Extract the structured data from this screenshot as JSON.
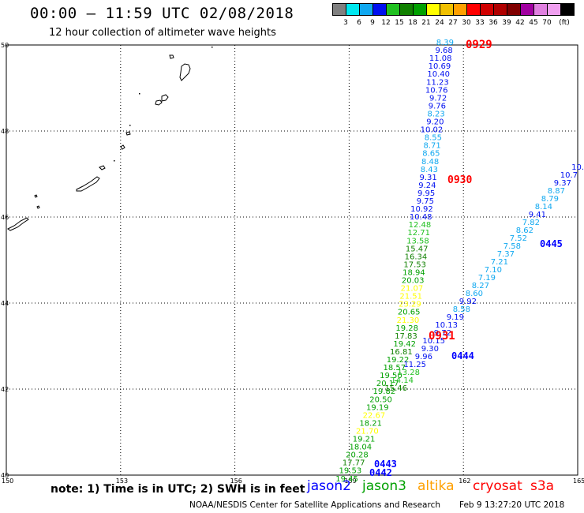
{
  "header": {
    "title": "00:00 – 11:59 UTC 02/08/2018",
    "subtitle": "12 hour collection of altimeter wave heights"
  },
  "legend": {
    "unit": "(ft)",
    "colors": [
      "#808080",
      "#00e8f0",
      "#10a8f0",
      "#0010f0",
      "#20c020",
      "#108000",
      "#00a000",
      "#ffff00",
      "#f0c000",
      "#ffa000",
      "#ff0000",
      "#d00000",
      "#b00000",
      "#800000",
      "#a000a0",
      "#e080e0",
      "#f0a0f0",
      "#000000"
    ],
    "ticks": [
      "3",
      "6",
      "9",
      "12",
      "15",
      "18",
      "21",
      "24",
      "27",
      "30",
      "33",
      "36",
      "39",
      "42",
      "45",
      "70"
    ]
  },
  "axes": {
    "lat_labels": [
      "50",
      "48",
      "46",
      "44",
      "42",
      "40"
    ],
    "lon_labels": [
      "150",
      "153",
      "156",
      "159",
      "162",
      "165"
    ]
  },
  "tracks": [
    {
      "id": "track-a",
      "time": "0929",
      "time_color": "#ff0000",
      "values": [
        "8.39",
        "9.68",
        "11.08",
        "10.69",
        "10.40",
        "11.23",
        "10.76",
        "9.72",
        "9.76",
        "8.23",
        "9.20",
        "10.02",
        "8.55",
        "8.71",
        "8.65",
        "8.48",
        "8.43",
        "9.31",
        "9.24",
        "9.95",
        "9.75",
        "10.92",
        "10.48",
        "12.48",
        "12.71",
        "13.58",
        "15.47",
        "16.34",
        "17.53",
        "18.94",
        "20.03",
        "21.07",
        "21.51",
        "23.29",
        "20.65",
        "21.30",
        "19.28",
        "17.83",
        "19.42",
        "16.81",
        "19.22",
        "18.57",
        "19.50",
        "20.17",
        "19.82",
        "20.50",
        "19.19",
        "22.67",
        "18.21",
        "21.70",
        "19.21",
        "18.04",
        "20.28",
        "17.77",
        "19.53",
        "19.45"
      ]
    },
    {
      "id": "track-b",
      "time": "0930",
      "time_color": "#ff0000"
    },
    {
      "id": "track-c",
      "time": "0931",
      "time_color": "#ff0000"
    },
    {
      "id": "track-d",
      "time": "0445",
      "time_color": "#0000ff",
      "values": [
        "10.",
        "10.7",
        "9.37",
        "8.87",
        "8.79",
        "8.14",
        "9.41",
        "7.82",
        "8.62",
        "7.52",
        "7.58",
        "7.37",
        "7.21",
        "7.10",
        "7.19",
        "8.27",
        "8.60",
        "9.92",
        "8.58",
        "9.19",
        "10.13",
        "9.72",
        "10.15",
        "9.30",
        "9.96",
        "11.25",
        "13.28",
        "14.14",
        "15.46"
      ]
    },
    {
      "id": "track-e",
      "time": "0444",
      "time_color": "#0000ff"
    },
    {
      "id": "track-f",
      "time": "0443",
      "time_color": "#0000ff"
    },
    {
      "id": "track-g",
      "time": "0442",
      "time_color": "#0000ff"
    }
  ],
  "footer": {
    "note": "note: 1) Time is in UTC; 2) SWH is in feet",
    "satellites": [
      {
        "name": "jason2",
        "color": "#0000ff"
      },
      {
        "name": "jason3",
        "color": "#00a000"
      },
      {
        "name": "altika",
        "color": "#ffa000"
      },
      {
        "name": "cryosat",
        "color": "#ff0000"
      },
      {
        "name": "s3a",
        "color": "#ff0000"
      }
    ],
    "credit": "NOAA/NESDIS Center for Satellite Applications and Research",
    "timestamp": "Feb 9 13:27:20 UTC 2018"
  }
}
